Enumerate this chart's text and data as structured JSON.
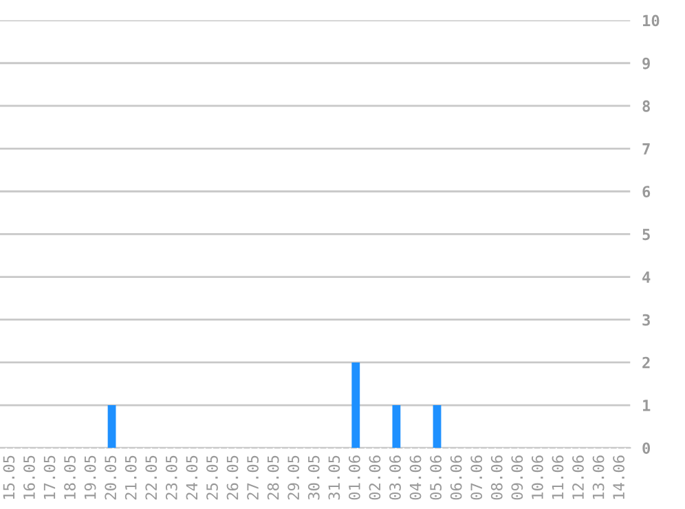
{
  "chart_data": {
    "type": "bar",
    "categories": [
      "15.05",
      "16.05",
      "17.05",
      "18.05",
      "19.05",
      "20.05",
      "21.05",
      "22.05",
      "23.05",
      "24.05",
      "25.05",
      "26.05",
      "27.05",
      "28.05",
      "29.05",
      "30.05",
      "31.05",
      "01.06",
      "02.06",
      "03.06",
      "04.06",
      "05.06",
      "06.06",
      "07.06",
      "08.06",
      "09.06",
      "10.06",
      "11.06",
      "12.06",
      "13.06",
      "14.06"
    ],
    "values": [
      0,
      0,
      0,
      0,
      0,
      1,
      0,
      0,
      0,
      0,
      0,
      0,
      0,
      0,
      0,
      0,
      0,
      2,
      0,
      1,
      0,
      1,
      0,
      0,
      0,
      0,
      0,
      0,
      0,
      0,
      0
    ],
    "color": "#1e90ff",
    "ylim": [
      0,
      10
    ],
    "yticks": [
      0,
      1,
      2,
      3,
      4,
      5,
      6,
      7,
      8,
      9,
      10
    ],
    "grid": "y"
  }
}
